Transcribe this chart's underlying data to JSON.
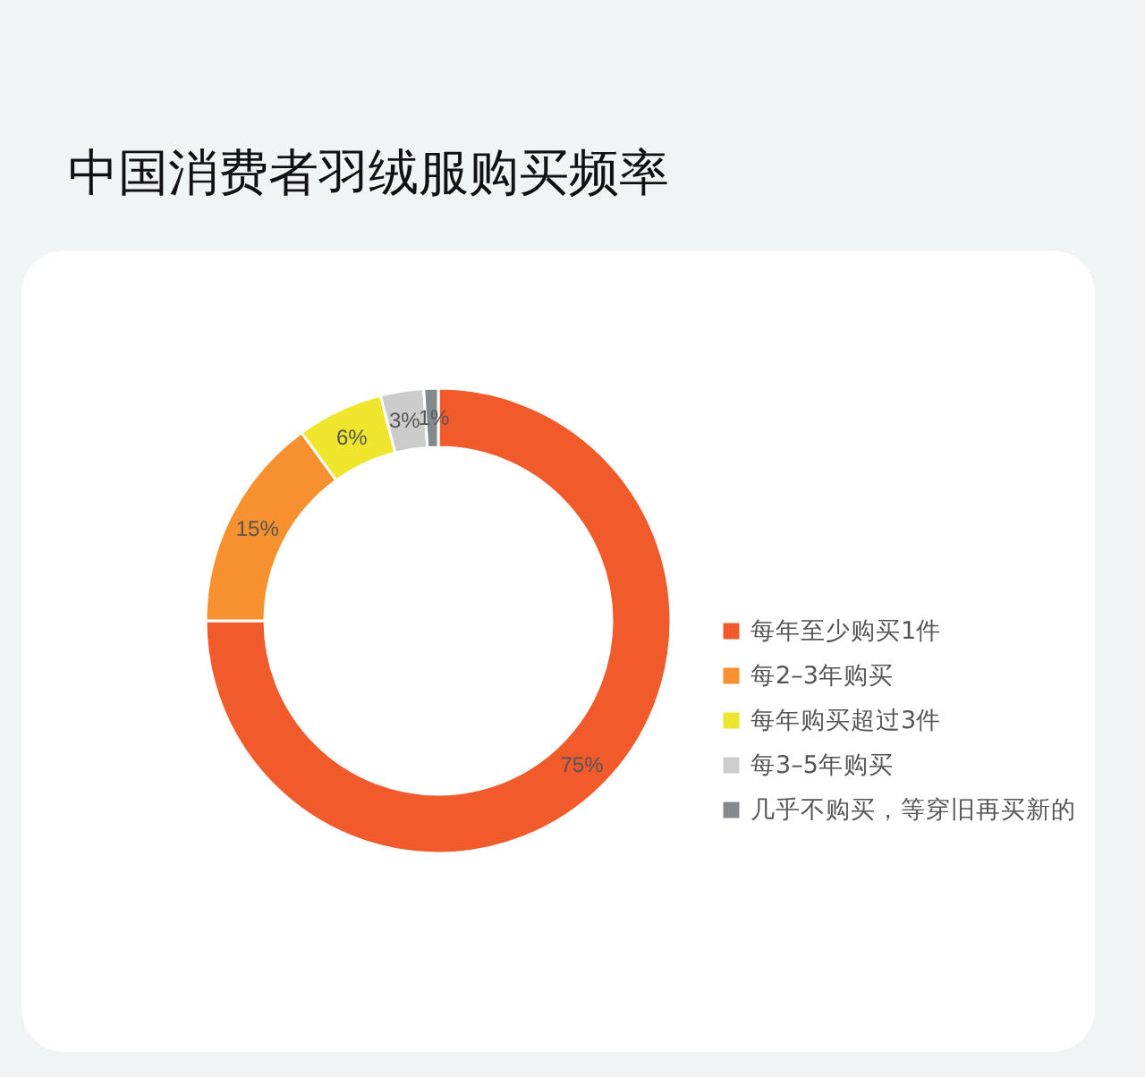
{
  "chart_data": {
    "type": "donut",
    "title": "中国消费者羽绒服购买频率",
    "categories": [
      "每年至少购买1件",
      "每2–3年购买",
      "每年购买超过3件",
      "每3–5年购买",
      "几乎不购买，等穿旧再买新的"
    ],
    "values": [
      75,
      15,
      6,
      3,
      1
    ],
    "colors": [
      "#f15a2b",
      "#f7902e",
      "#efe52c",
      "#cccccc",
      "#86898b"
    ],
    "value_labels": [
      "75%",
      "15%",
      "6%",
      "3%",
      "1%"
    ],
    "legend": "right"
  }
}
